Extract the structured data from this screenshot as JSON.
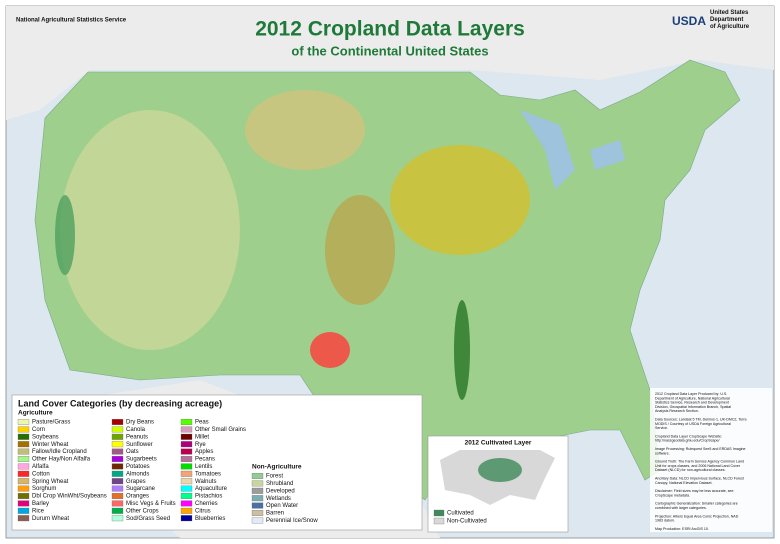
{
  "header": {
    "title": "2012 Cropland Data Layers",
    "subtitle": "of the Continental United States",
    "agency": "National Agricultural Statistics Service",
    "department_logo": "USDA",
    "department": "United States Department of Agriculture"
  },
  "legend": {
    "title": "Land Cover Categories (by decreasing acreage)",
    "groups": [
      {
        "heading": "Agriculture",
        "items": [
          {
            "label": "Pasture/Grass",
            "color": "#eef5b0"
          },
          {
            "label": "Corn",
            "color": "#ffd300"
          },
          {
            "label": "Soybeans",
            "color": "#267000"
          },
          {
            "label": "Winter Wheat",
            "color": "#a57000"
          },
          {
            "label": "Fallow/Idle Cropland",
            "color": "#bfbf77"
          },
          {
            "label": "Other Hay/Non Alfalfa",
            "color": "#a5f58c"
          },
          {
            "label": "Alfalfa",
            "color": "#ffa5e2"
          },
          {
            "label": "Cotton",
            "color": "#ff2626"
          },
          {
            "label": "Spring Wheat",
            "color": "#d8b56b"
          },
          {
            "label": "Sorghum",
            "color": "#ff9e0a"
          },
          {
            "label": "Dbl Crop WinWht/Soybeans",
            "color": "#707000"
          },
          {
            "label": "Barley",
            "color": "#e2007c"
          },
          {
            "label": "Rice",
            "color": "#00a8e2"
          },
          {
            "label": "Durum Wheat",
            "color": "#896054"
          },
          {
            "label": "Dry Beans",
            "color": "#a80000"
          },
          {
            "label": "Canola",
            "color": "#d1ff00"
          },
          {
            "label": "Peanuts",
            "color": "#70a500"
          },
          {
            "label": "Sunflower",
            "color": "#ffff00"
          },
          {
            "label": "Oats",
            "color": "#a05989"
          },
          {
            "label": "Sugarbeets",
            "color": "#a800e2"
          },
          {
            "label": "Potatoes",
            "color": "#702600"
          },
          {
            "label": "Almonds",
            "color": "#00a884"
          },
          {
            "label": "Grapes",
            "color": "#704489"
          },
          {
            "label": "Sugarcane",
            "color": "#af7cff"
          },
          {
            "label": "Oranges",
            "color": "#e27026"
          },
          {
            "label": "Misc Vegs & Fruits",
            "color": "#ff6666"
          },
          {
            "label": "Other Crops",
            "color": "#00af49"
          },
          {
            "label": "Sod/Grass Seed",
            "color": "#afffdd"
          },
          {
            "label": "Peas",
            "color": "#54ff00"
          },
          {
            "label": "Other Small Grains",
            "color": "#d69ebc"
          },
          {
            "label": "Millet",
            "color": "#6f0000"
          },
          {
            "label": "Rye",
            "color": "#ad007c"
          },
          {
            "label": "Apples",
            "color": "#ba004f"
          },
          {
            "label": "Pecans",
            "color": "#b5709b"
          },
          {
            "label": "Lentils",
            "color": "#00de00"
          },
          {
            "label": "Tomatoes",
            "color": "#f2a377"
          },
          {
            "label": "Walnuts",
            "color": "#e9d6af"
          },
          {
            "label": "Aquaculture",
            "color": "#00ffff"
          },
          {
            "label": "Pistachios",
            "color": "#00ff8c"
          },
          {
            "label": "Cherries",
            "color": "#ff00ff"
          },
          {
            "label": "Citrus",
            "color": "#ffa500"
          },
          {
            "label": "Blueberries",
            "color": "#000099"
          }
        ]
      },
      {
        "heading": "Non-Agriculture",
        "items": [
          {
            "label": "Forest",
            "color": "#93cc93"
          },
          {
            "label": "Shrubland",
            "color": "#c6d69e"
          },
          {
            "label": "Developed",
            "color": "#9c9c9c"
          },
          {
            "label": "Wetlands",
            "color": "#7cafaf"
          },
          {
            "label": "Open Water",
            "color": "#4970a3"
          },
          {
            "label": "Barren",
            "color": "#ccbfa3"
          },
          {
            "label": "Perennial Ice/Snow",
            "color": "#e4e9f7"
          }
        ]
      }
    ]
  },
  "inset": {
    "title": "2012 Cultivated Layer",
    "items": [
      {
        "label": "Cultivated",
        "color": "#3f8a5a"
      },
      {
        "label": "Non-Cultivated",
        "color": "#d8d8d8"
      }
    ]
  },
  "notes": [
    "2012 Cropland Data Layer Produced by: U.S. Department of Agriculture, National Agricultural Statistics Service, Research and Development Division, Geospatial Information Branch, Spatial Analysis Research Section.",
    "Data Sources: Landsat 5 TM, Deimos-1, UK-DMC2, Terra MODIS / Courtesy of USDA Foreign Agricultural Service.",
    "Cropland Data Layer CropScape Website: http://nassgeodata.gmu.edu/CropScape/",
    "Image Processing: Rulequest See5 and ERDAS Imagine software.",
    "Ground Truth: The Farm Service Agency Common Land Unit for crops classes, and 2006 National Land Cover Dataset (NLCD) for non-agricultural classes.",
    "Ancillary Data: NLCD Impervious Surface, NLCD Forest Canopy, National Elevation Dataset.",
    "Disclaimer: Field sizes may be less accurate, see CropScape metadata.",
    "Cartographic Generalization: Smaller categories are combined with larger categories.",
    "Projection: Albers Equal Area Conic Projection, NAD 1983 datum.",
    "Map Production: ESRI ArcGIS 10."
  ]
}
